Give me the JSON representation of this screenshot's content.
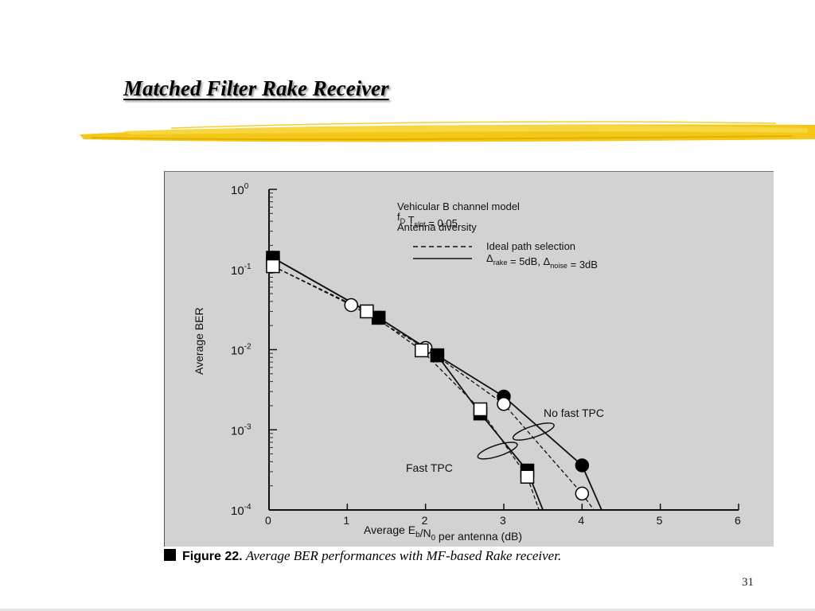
{
  "slide": {
    "title": "Matched Filter Rake Receiver",
    "page_number": "31",
    "accent_color": "#f2c200"
  },
  "caption": {
    "label": "Figure 22.",
    "text": "Average BER performances with MF-based Rake receiver."
  },
  "chart_data": {
    "type": "line",
    "xlabel": "Average E_b/N_0 per antenna (dB)",
    "ylabel": "Average BER",
    "x_scale": "linear",
    "y_scale": "log",
    "xlim": [
      0,
      6
    ],
    "ylim": [
      0.0001,
      1
    ],
    "x_ticks": [
      "0",
      "1",
      "2",
      "3",
      "4",
      "5",
      "6"
    ],
    "y_ticks": [
      "10^0",
      "10^-1",
      "10^-2",
      "10^-3",
      "10^-4"
    ],
    "legend": {
      "position": "top-right",
      "header": [
        "Vehicular B channel model",
        "f_D T_slot = 0.05",
        "Antenna diversity"
      ],
      "entries": [
        {
          "style": "dashed",
          "label": "Ideal path selection"
        },
        {
          "style": "solid",
          "label": "Δ_rake = 5dB, Δ_noise = 3dB"
        }
      ]
    },
    "annotations": [
      {
        "text": "No fast TPC"
      },
      {
        "text": "Fast TPC"
      }
    ],
    "series": [
      {
        "marker": "filled-circle",
        "style": "solid",
        "group": "No fast TPC",
        "x": [
          0.05,
          1.4,
          2.15,
          3.0,
          4.0,
          4.25
        ],
        "y": [
          0.14,
          0.025,
          0.0085,
          0.0026,
          0.00036,
          0.0001
        ]
      },
      {
        "marker": "open-circle",
        "style": "dashed",
        "group": "No fast TPC",
        "x": [
          0.05,
          1.05,
          2.0,
          3.0,
          4.0,
          4.15
        ],
        "y": [
          0.11,
          0.036,
          0.0105,
          0.0021,
          0.00016,
          0.0001
        ]
      },
      {
        "marker": "filled-square",
        "style": "solid",
        "group": "Fast TPC",
        "x": [
          0.05,
          1.4,
          2.15,
          2.7,
          3.3,
          3.5
        ],
        "y": [
          0.14,
          0.025,
          0.0085,
          0.0016,
          0.00031,
          0.0001
        ]
      },
      {
        "marker": "open-square",
        "style": "dashed",
        "group": "Fast TPC",
        "x": [
          0.05,
          1.25,
          1.95,
          2.7,
          3.3,
          3.45
        ],
        "y": [
          0.11,
          0.03,
          0.0098,
          0.0018,
          0.00026,
          0.0001
        ]
      }
    ]
  }
}
